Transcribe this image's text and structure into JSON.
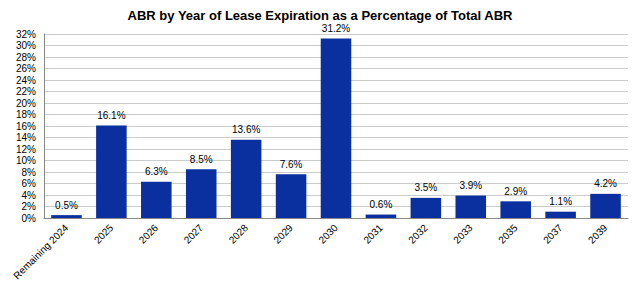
{
  "chart_data": {
    "type": "bar",
    "title": "ABR by Year of Lease Expiration as a Percentage of Total ABR",
    "categories": [
      "Remaining 2024",
      "2025",
      "2026",
      "2027",
      "2028",
      "2029",
      "2030",
      "2031",
      "2032",
      "2033",
      "2035",
      "2037",
      "2039"
    ],
    "values": [
      0.5,
      16.1,
      6.3,
      8.5,
      13.6,
      7.6,
      31.2,
      0.6,
      3.5,
      3.9,
      2.9,
      1.1,
      4.2
    ],
    "value_labels": [
      "0.5%",
      "16.1%",
      "6.3%",
      "8.5%",
      "13.6%",
      "7.6%",
      "31.2%",
      "0.6%",
      "3.5%",
      "3.9%",
      "2.9%",
      "1.1%",
      "4.2%"
    ],
    "color": "#0a2f9e",
    "ylim": [
      0,
      32
    ],
    "yticks": [
      {
        "value": 0,
        "label": "0%"
      },
      {
        "value": 2,
        "label": "2%"
      },
      {
        "value": 4,
        "label": "4%"
      },
      {
        "value": 6,
        "label": "6%"
      },
      {
        "value": 8,
        "label": "8%"
      },
      {
        "value": 10,
        "label": "10%"
      },
      {
        "value": 12,
        "label": "12%"
      },
      {
        "value": 14,
        "label": "14%"
      },
      {
        "value": 16,
        "label": "16%"
      },
      {
        "value": 18,
        "label": "18%"
      },
      {
        "value": 20,
        "label": "20%"
      },
      {
        "value": 22,
        "label": "22%"
      },
      {
        "value": 24,
        "label": "24%"
      },
      {
        "value": 26,
        "label": "26%"
      },
      {
        "value": 28,
        "label": "28%"
      },
      {
        "value": 30,
        "label": "30%"
      },
      {
        "value": 32,
        "label": "32%"
      }
    ],
    "grid": true,
    "data_labels": true
  }
}
